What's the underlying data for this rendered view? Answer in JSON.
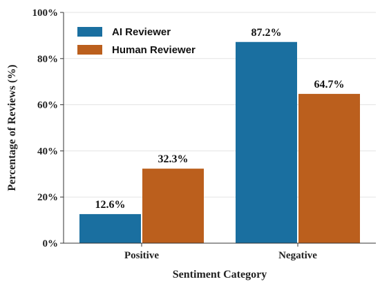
{
  "chart_data": {
    "type": "bar",
    "categories": [
      "Positive",
      "Negative"
    ],
    "series": [
      {
        "name": "AI Reviewer",
        "values": [
          12.6,
          87.2
        ],
        "color": "#1a6fa0"
      },
      {
        "name": "Human Reviewer",
        "values": [
          32.3,
          64.7
        ],
        "color": "#bb5f1d"
      }
    ],
    "data_labels": [
      [
        "12.6%",
        "87.2%"
      ],
      [
        "32.3%",
        "64.7%"
      ]
    ],
    "y_ticks": [
      0,
      20,
      40,
      60,
      80,
      100
    ],
    "y_tick_labels": [
      "0%",
      "20%",
      "40%",
      "60%",
      "80%",
      "100%"
    ],
    "ylim": [
      0,
      100
    ],
    "xlabel": "Sentiment Category",
    "ylabel": "Percentage of Reviews (%)",
    "grid": true,
    "legend_position": "top-left"
  }
}
